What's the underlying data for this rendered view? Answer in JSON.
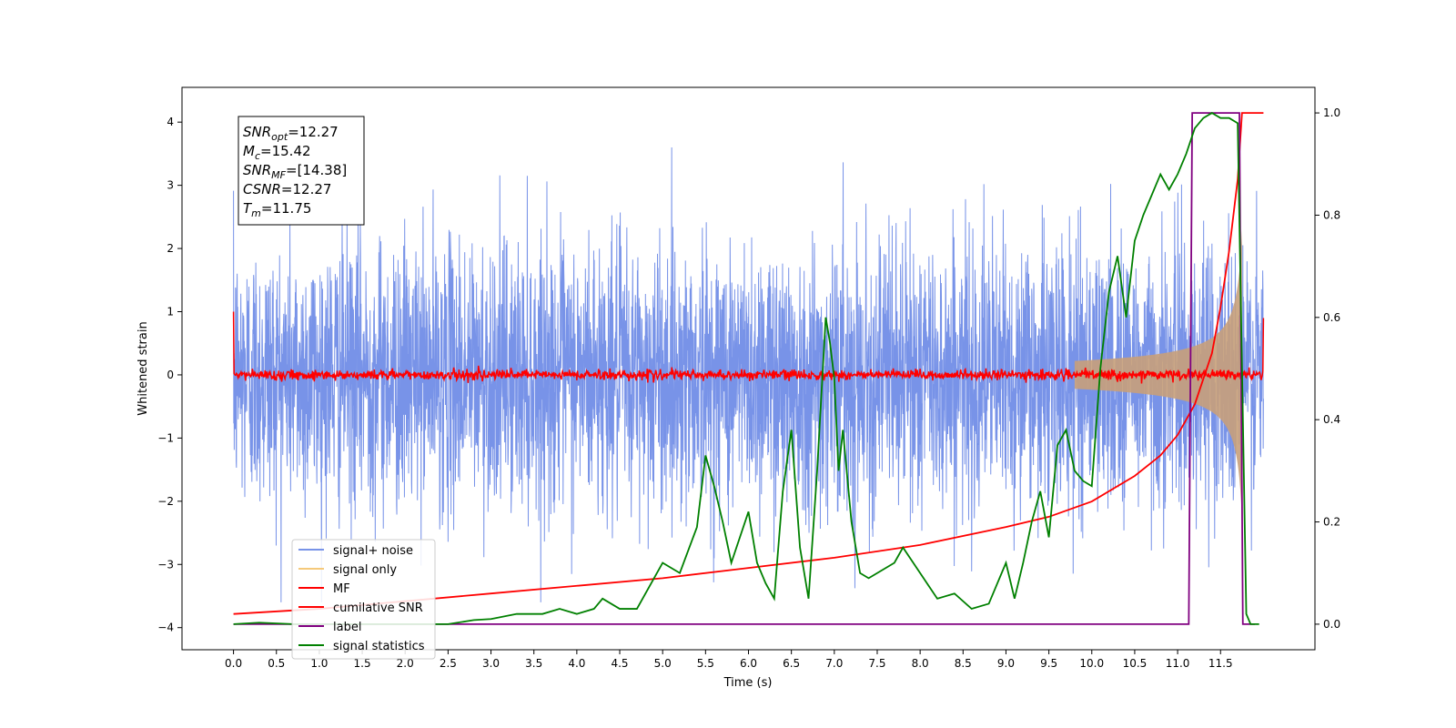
{
  "chart_data": {
    "type": "line",
    "xlabel": "Time (s)",
    "ylabel": "Whitened strain",
    "xlim": [
      -0.6,
      12.6
    ],
    "ylim": [
      -4.35,
      4.55
    ],
    "y2lim": [
      -0.05,
      1.05
    ],
    "x_ticks": [
      "0.0",
      "0.5",
      "1.0",
      "1.5",
      "2.0",
      "2.5",
      "3.0",
      "3.5",
      "4.0",
      "4.5",
      "5.0",
      "5.5",
      "6.0",
      "6.5",
      "7.0",
      "7.5",
      "8.0",
      "8.5",
      "9.0",
      "9.5",
      "10.0",
      "10.5",
      "11.0",
      "11.5"
    ],
    "y_ticks": [
      "−4",
      "−3",
      "−2",
      "−1",
      "0",
      "1",
      "2",
      "3",
      "4"
    ],
    "y2_ticks": [
      "0.0",
      "0.2",
      "0.4",
      "0.6",
      "0.8",
      "1.0"
    ],
    "grid": false,
    "legend_position": "lower-left",
    "info_box": {
      "snr_opt_label": "SNR",
      "snr_opt_sub": "opt",
      "snr_opt_value": "=12.27",
      "mc_label": "M",
      "mc_sub": "c",
      "mc_value": "=15.42",
      "snr_mf_label": "SNR",
      "snr_mf_sub": "MF",
      "snr_mf_value": "=[14.38]",
      "csnr_label": "CSNR",
      "csnr_value": "=12.27",
      "tm_label": "T",
      "tm_sub": "m",
      "tm_value": "=11.75"
    },
    "series": [
      {
        "name": "signal+ noise",
        "color": "#7893e8",
        "axis": "left",
        "kind": "noise",
        "duration": 12.0,
        "sigma": 1.05,
        "max_abs": 3.6
      },
      {
        "name": "signal only",
        "color": "#c8a07a",
        "axis": "left",
        "kind": "chirp_envelope",
        "merger_time": 11.75,
        "peak": 2.5
      },
      {
        "name": "MF",
        "color": "#ff0000",
        "axis": "left",
        "kind": "matched_filter",
        "level": 0.0,
        "spread": 0.08,
        "start_value": 1.0,
        "end_value": 0.9
      },
      {
        "name": "cumilative SNR",
        "color": "#ff0000",
        "axis": "right",
        "x": [
          0.0,
          1.0,
          2.0,
          3.0,
          4.0,
          5.0,
          6.0,
          7.0,
          8.0,
          9.0,
          9.5,
          10.0,
          10.5,
          10.8,
          11.0,
          11.2,
          11.4,
          11.5,
          11.6,
          11.7,
          11.75,
          11.76,
          11.95,
          12.0
        ],
        "values": [
          0.02,
          0.03,
          0.045,
          0.06,
          0.075,
          0.09,
          0.11,
          0.13,
          0.155,
          0.19,
          0.21,
          0.24,
          0.29,
          0.33,
          0.37,
          0.43,
          0.53,
          0.62,
          0.73,
          0.87,
          1.0,
          1.0,
          1.0,
          1.0
        ]
      },
      {
        "name": "label",
        "color": "#800080",
        "axis": "right",
        "x": [
          0.0,
          11.13,
          11.17,
          11.72,
          11.76,
          11.9
        ],
        "values": [
          0.0,
          0.0,
          1.0,
          1.0,
          0.0,
          0.0
        ]
      },
      {
        "name": "signal statistics",
        "color": "#008000",
        "axis": "right",
        "x": [
          0.0,
          0.3,
          0.7,
          1.0,
          1.5,
          2.0,
          2.5,
          2.8,
          3.0,
          3.3,
          3.6,
          3.8,
          4.0,
          4.2,
          4.3,
          4.5,
          4.7,
          5.0,
          5.2,
          5.4,
          5.5,
          5.6,
          5.7,
          5.8,
          6.0,
          6.1,
          6.2,
          6.3,
          6.4,
          6.5,
          6.6,
          6.7,
          6.8,
          6.9,
          6.95,
          7.0,
          7.05,
          7.1,
          7.2,
          7.3,
          7.4,
          7.5,
          7.7,
          7.8,
          8.0,
          8.2,
          8.4,
          8.6,
          8.8,
          9.0,
          9.1,
          9.2,
          9.3,
          9.4,
          9.5,
          9.6,
          9.7,
          9.8,
          9.9,
          10.0,
          10.1,
          10.2,
          10.3,
          10.4,
          10.5,
          10.6,
          10.7,
          10.8,
          10.9,
          11.0,
          11.1,
          11.2,
          11.3,
          11.4,
          11.5,
          11.6,
          11.7,
          11.75,
          11.8,
          11.85,
          11.95
        ],
        "values": [
          0.0,
          0.003,
          0.0,
          0.0,
          0.0,
          0.0,
          0.0,
          0.008,
          0.01,
          0.02,
          0.02,
          0.03,
          0.02,
          0.03,
          0.05,
          0.03,
          0.03,
          0.12,
          0.1,
          0.19,
          0.33,
          0.27,
          0.2,
          0.12,
          0.22,
          0.12,
          0.08,
          0.05,
          0.26,
          0.38,
          0.15,
          0.05,
          0.3,
          0.6,
          0.55,
          0.48,
          0.3,
          0.38,
          0.2,
          0.1,
          0.09,
          0.1,
          0.12,
          0.15,
          0.1,
          0.05,
          0.06,
          0.03,
          0.04,
          0.12,
          0.05,
          0.12,
          0.2,
          0.26,
          0.17,
          0.35,
          0.38,
          0.3,
          0.28,
          0.27,
          0.5,
          0.65,
          0.72,
          0.6,
          0.75,
          0.8,
          0.84,
          0.88,
          0.85,
          0.88,
          0.92,
          0.97,
          0.99,
          1.0,
          0.99,
          0.99,
          0.98,
          0.5,
          0.02,
          0.0,
          0.0
        ]
      }
    ]
  }
}
